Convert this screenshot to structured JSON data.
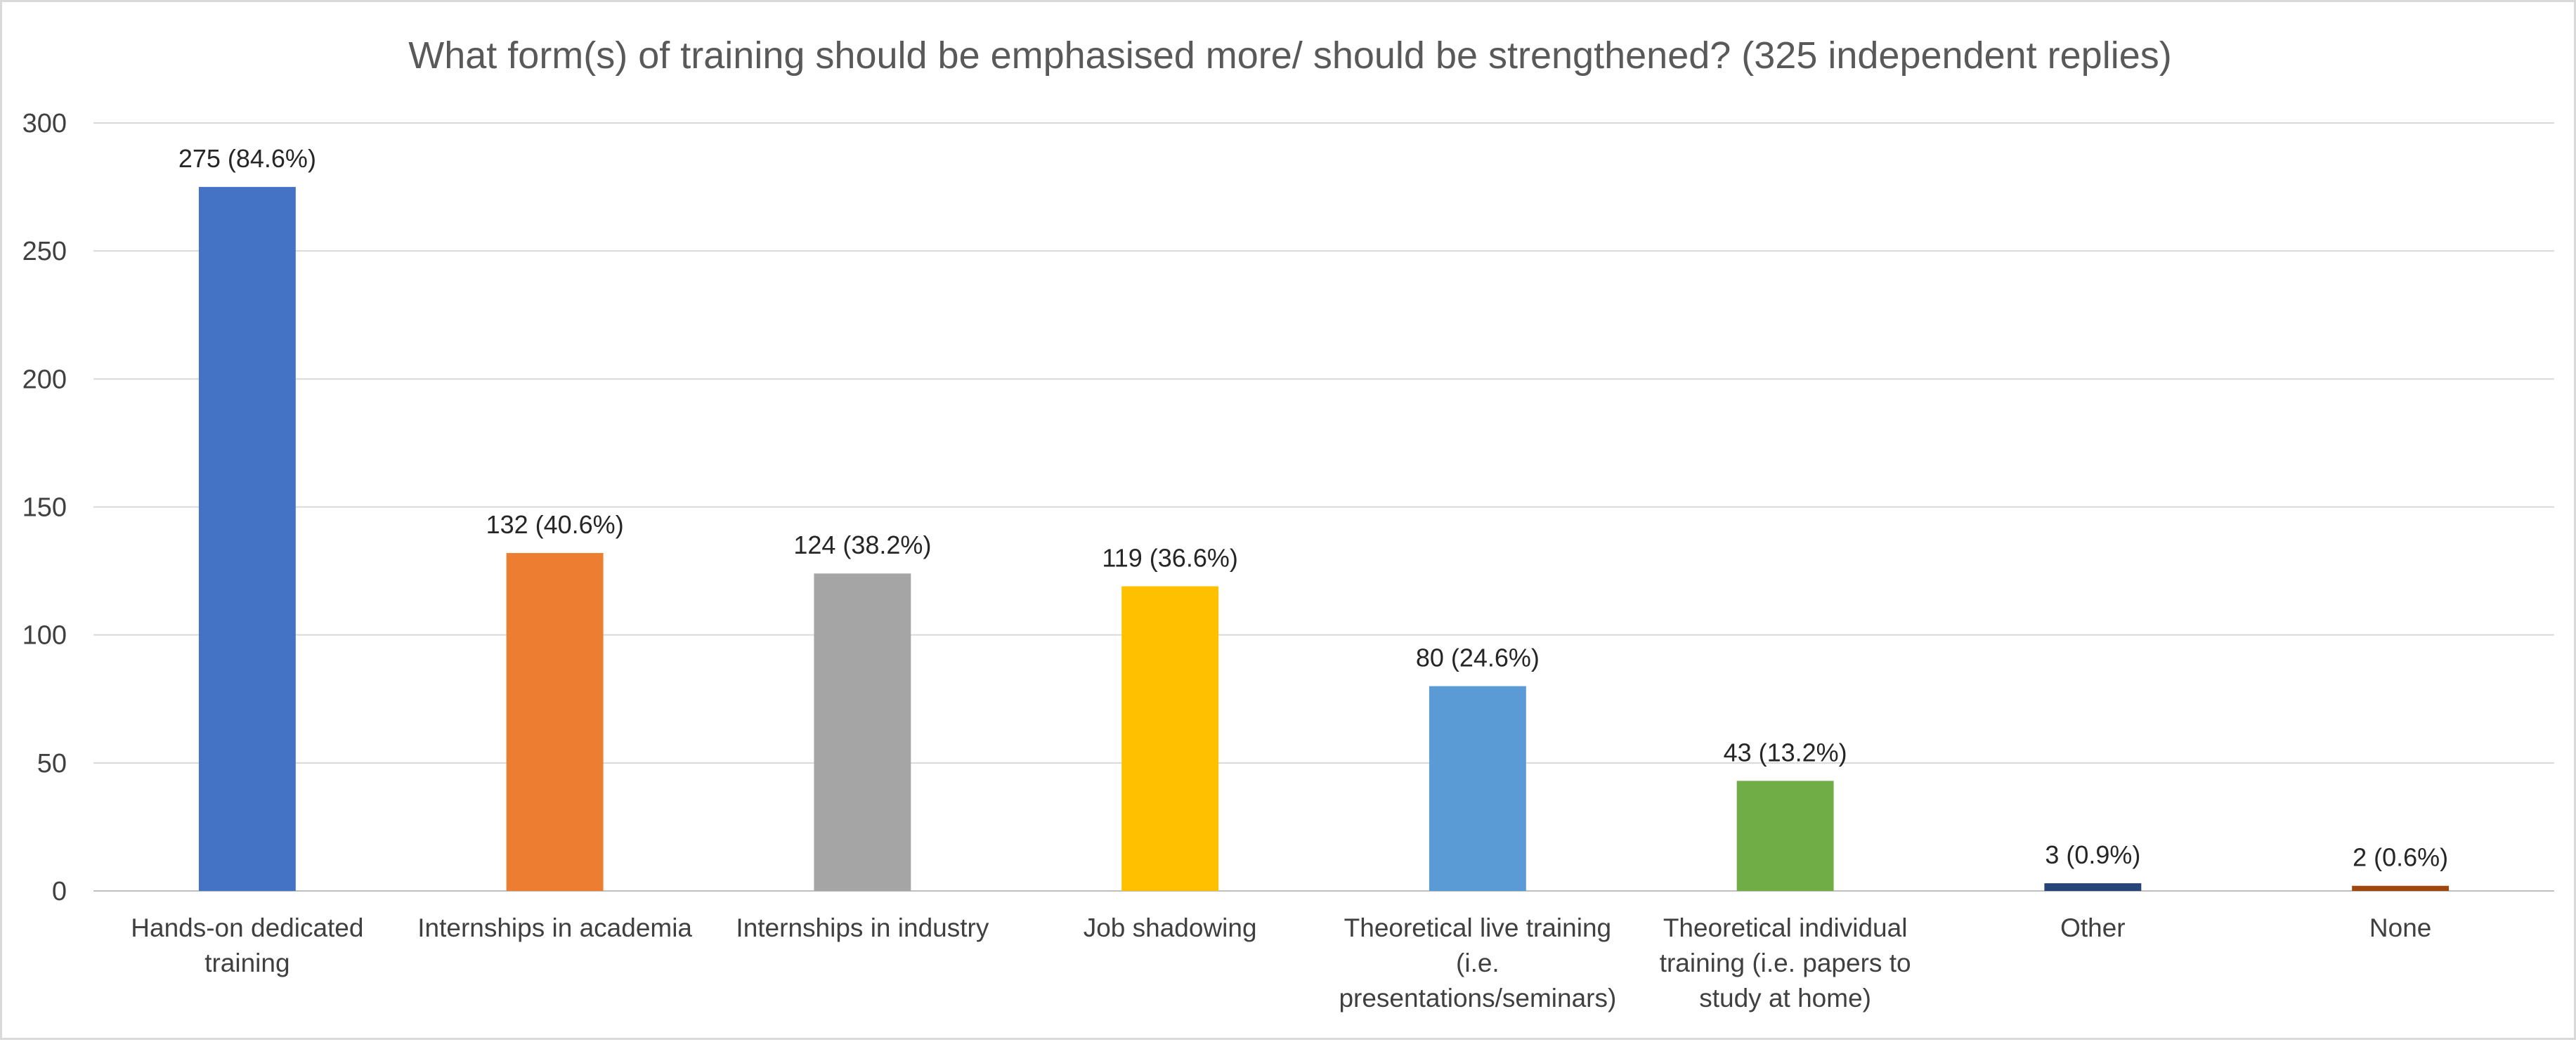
{
  "chart_data": {
    "type": "bar",
    "title": "What form(s) of training should be emphasised more/ should be strengthened? (325 independent replies)",
    "xlabel": "",
    "ylabel": "",
    "ylim": [
      0,
      300
    ],
    "yticks": [
      0,
      50,
      100,
      150,
      200,
      250,
      300
    ],
    "grid": true,
    "legend": "none",
    "categories": [
      [
        "Hands-on dedicated",
        "training"
      ],
      [
        "Internships in academia"
      ],
      [
        "Internships in industry"
      ],
      [
        "Job shadowing"
      ],
      [
        "Theoretical live training",
        "(i.e.",
        "presentations/seminars)"
      ],
      [
        "Theoretical individual",
        "training (i.e. papers to",
        "study at home)"
      ],
      [
        "Other"
      ],
      [
        "None"
      ]
    ],
    "values": [
      275,
      132,
      124,
      119,
      80,
      43,
      3,
      2
    ],
    "data_labels": [
      "275 (84.6%)",
      "132 (40.6%)",
      "124 (38.2%)",
      "119 (36.6%)",
      "80 (24.6%)",
      "43 (13.2%)",
      "3 (0.9%)",
      "2 (0.6%)"
    ],
    "colors": [
      "#4472C4",
      "#ED7D31",
      "#A5A5A5",
      "#FFC000",
      "#5B9BD5",
      "#70AD47",
      "#264478",
      "#9E480E"
    ]
  }
}
